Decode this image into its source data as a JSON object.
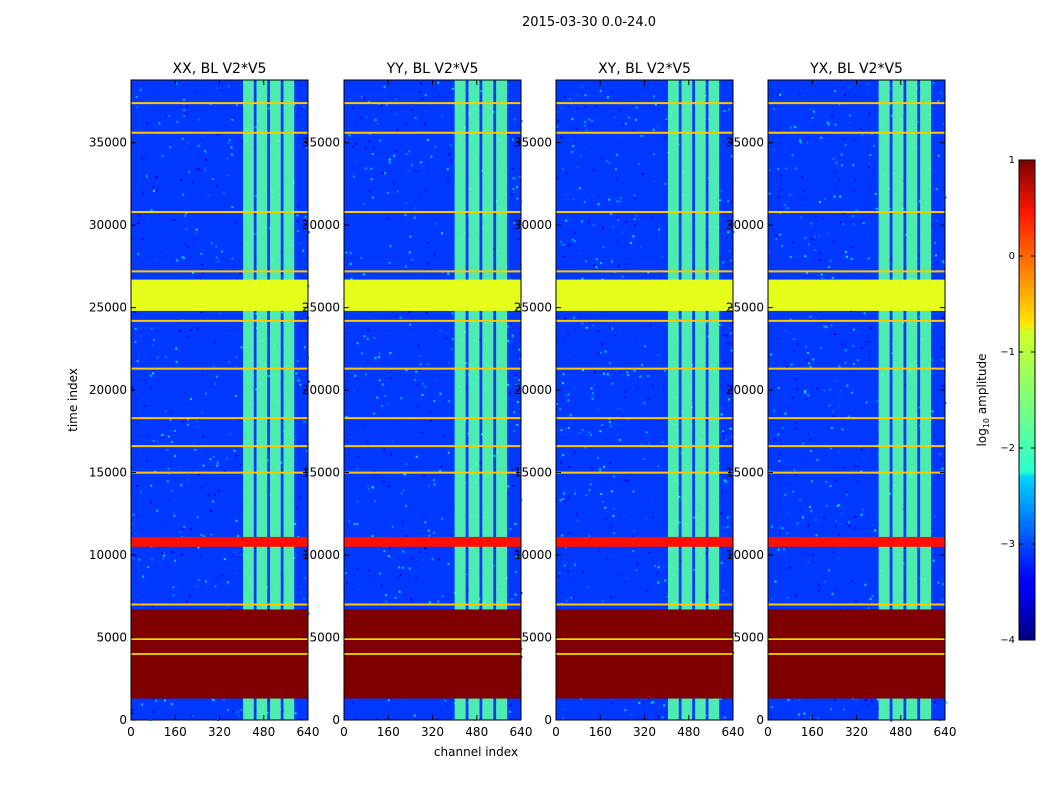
{
  "chart_data": {
    "type": "heatmap",
    "title": "2015-03-30 0.0-24.0",
    "xlabel": "channel index",
    "ylabel": "time index",
    "xlim": [
      0,
      640
    ],
    "ylim": [
      0,
      38800
    ],
    "xticks": [
      0,
      160,
      320,
      480,
      640
    ],
    "yticks": [
      0,
      5000,
      10000,
      15000,
      20000,
      25000,
      30000,
      35000
    ],
    "xtick_labels": [
      "0",
      "160",
      "320",
      "480",
      "640"
    ],
    "ytick_labels": [
      "0",
      "5000",
      "10000",
      "15000",
      "20000",
      "25000",
      "30000",
      "35000"
    ],
    "panels": [
      {
        "title": "XX, BL V2*V5",
        "bright_ch": [
          405,
          600
        ]
      },
      {
        "title": "YY, BL V2*V5",
        "bright_ch": [
          400,
          600
        ]
      },
      {
        "title": "XY, BL V2*V5",
        "bright_ch": [
          405,
          600
        ]
      },
      {
        "title": "YX, BL V2*V5",
        "bright_ch": [
          400,
          600
        ]
      }
    ],
    "bands": [
      {
        "from": 1300,
        "to": 6700,
        "level": 1.0,
        "note": "saturated high amplitude block"
      },
      {
        "from": 10500,
        "to": 11100,
        "level": 0.3
      },
      {
        "from": 24800,
        "to": 26700,
        "level": -1.0,
        "note": "flagged block"
      }
    ],
    "lines": [
      4000,
      4900,
      7000,
      15000,
      16600,
      18300,
      21300,
      24200,
      27200,
      30800,
      35600,
      37400
    ],
    "colorbar": {
      "label": "log",
      "label_sub": "10",
      "label_rest": " amplitude",
      "range": [
        -4,
        1
      ],
      "ticks": [
        1,
        0,
        -1,
        -2,
        -3,
        -4
      ],
      "tick_labels": [
        "1",
        "0",
        "−1",
        "−2",
        "−3",
        "−4"
      ],
      "colormap": "jet"
    }
  }
}
